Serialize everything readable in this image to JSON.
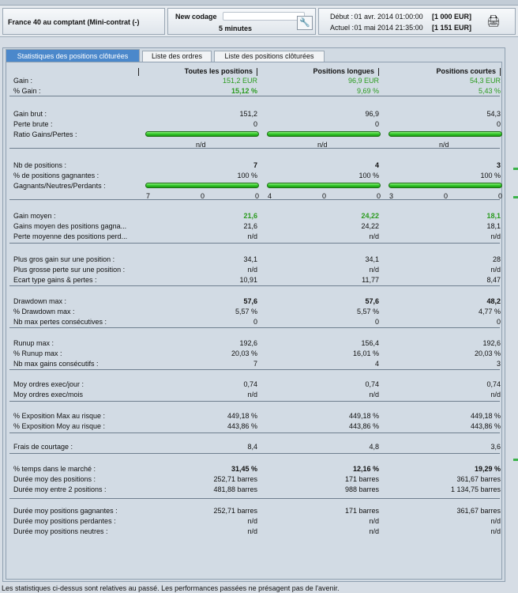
{
  "header": {
    "instrument": "France 40 au comptant (Mini-contrat  (-)",
    "codage_label": "New codage",
    "codage_value": "",
    "period": "5 minutes",
    "debut_label": "Début :",
    "debut_date": "01 avr. 2014 01:00:00",
    "debut_amount": "[1 000 EUR]",
    "actuel_label": "Actuel :",
    "actuel_date": "01 mai 2014 21:35:00",
    "actuel_amount": "[1 151 EUR]"
  },
  "tabs": [
    {
      "label": "Statistiques des positions clôturées",
      "active": true
    },
    {
      "label": "Liste des ordres",
      "active": false
    },
    {
      "label": "Liste des positions clôturées",
      "active": false
    }
  ],
  "columns": [
    "Toutes les positions",
    "Positions longues",
    "Positions courtes"
  ],
  "rows": {
    "gain": {
      "label": "Gain :",
      "values": [
        "151,2 EUR",
        "96,9 EUR",
        "54,3 EUR"
      ]
    },
    "gain_pct": {
      "label": "% Gain :",
      "values": [
        "15,12 %",
        "9,69 %",
        "5,43 %"
      ]
    },
    "gain_brut": {
      "label": "Gain brut :",
      "values": [
        "151,2",
        "96,9",
        "54,3"
      ]
    },
    "perte_brute": {
      "label": "Perte brute :",
      "values": [
        "0",
        "0",
        "0"
      ]
    },
    "ratio": {
      "label": "Ratio Gains/Pertes :",
      "values": [
        "n/d",
        "n/d",
        "n/d"
      ],
      "fill": [
        1,
        1,
        1
      ]
    },
    "nb_positions": {
      "label": "Nb de positions :",
      "values": [
        "7",
        "4",
        "3"
      ]
    },
    "pct_gagnantes": {
      "label": "% de positions gagnantes :",
      "values": [
        "100 %",
        "100 %",
        "100 %"
      ]
    },
    "gnp": {
      "label": "Gagnants/Neutres/Perdants :",
      "values": [
        [
          "7",
          "0",
          "0"
        ],
        [
          "4",
          "0",
          "0"
        ],
        [
          "3",
          "0",
          "0"
        ]
      ],
      "fill": [
        1,
        1,
        1
      ]
    },
    "gain_moyen": {
      "label": "Gain moyen :",
      "values": [
        "21,6",
        "24,22",
        "18,1"
      ]
    },
    "gains_moyen_gagn": {
      "label": "Gains moyen des positions gagna...",
      "values": [
        "21,6",
        "24,22",
        "18,1"
      ]
    },
    "perte_moy_perd": {
      "label": "Perte moyenne des positions perd...",
      "values": [
        "n/d",
        "n/d",
        "n/d"
      ]
    },
    "plus_gros_gain": {
      "label": "Plus gros gain sur une position :",
      "values": [
        "34,1",
        "34,1",
        "28"
      ]
    },
    "plus_grosse_perte": {
      "label": "Plus grosse perte sur une position :",
      "values": [
        "n/d",
        "n/d",
        "n/d"
      ]
    },
    "ecart_type": {
      "label": "Ecart type gains & pertes :",
      "values": [
        "10,91",
        "11,77",
        "8,47"
      ]
    },
    "drawdown_max": {
      "label": "Drawdown max :",
      "values": [
        "57,6",
        "57,6",
        "48,2"
      ]
    },
    "pct_drawdown": {
      "label": "% Drawdown max :",
      "values": [
        "5,57 %",
        "5,57 %",
        "4,77 %"
      ]
    },
    "nb_max_pertes": {
      "label": "Nb max pertes consécutives :",
      "values": [
        "0",
        "0",
        "0"
      ]
    },
    "runup_max": {
      "label": "Runup max :",
      "values": [
        "192,6",
        "156,4",
        "192,6"
      ]
    },
    "pct_runup": {
      "label": "% Runup max :",
      "values": [
        "20,03 %",
        "16,01 %",
        "20,03 %"
      ]
    },
    "nb_max_gains": {
      "label": "Nb max gains consécutifs :",
      "values": [
        "7",
        "4",
        "3"
      ]
    },
    "moy_ordres_jour": {
      "label": "Moy ordres exec/jour :",
      "values": [
        "0,74",
        "0,74",
        "0,74"
      ]
    },
    "moy_ordres_mois": {
      "label": "Moy ordres exec/mois",
      "values": [
        "n/d",
        "n/d",
        "n/d"
      ]
    },
    "expo_max": {
      "label": "% Exposition Max au risque :",
      "values": [
        "449,18 %",
        "449,18 %",
        "449,18 %"
      ]
    },
    "expo_moy": {
      "label": "% Exposition Moy au risque :",
      "values": [
        "443,86 %",
        "443,86 %",
        "443,86 %"
      ]
    },
    "frais": {
      "label": "Frais de courtage :",
      "values": [
        "8,4",
        "4,8",
        "3,6"
      ]
    },
    "pct_temps": {
      "label": "% temps dans le marché :",
      "values": [
        "31,45 %",
        "12,16 %",
        "19,29 %"
      ]
    },
    "duree_moy_pos": {
      "label": "Durée moy des positions :",
      "values": [
        "252,71 barres",
        "171 barres",
        "361,67 barres"
      ]
    },
    "duree_moy_entre": {
      "label": "Durée moy entre 2 positions :",
      "values": [
        "481,88 barres",
        "988 barres",
        "1 134,75 barres"
      ]
    },
    "duree_gagn": {
      "label": "Durée moy positions gagnantes :",
      "values": [
        "252,71 barres",
        "171 barres",
        "361,67 barres"
      ]
    },
    "duree_perd": {
      "label": "Durée moy positions perdantes :",
      "values": [
        "n/d",
        "n/d",
        "n/d"
      ]
    },
    "duree_neutres": {
      "label": "Durée moy positions neutres :",
      "values": [
        "n/d",
        "n/d",
        "n/d"
      ]
    }
  },
  "footer": "Les statistiques ci-dessus sont relatives au passé. Les performances passées ne présagent pas de l'avenir.",
  "colors": {
    "accent": "#4b88cb",
    "gain": "#2b9b1f",
    "bar": "#2ec425"
  }
}
